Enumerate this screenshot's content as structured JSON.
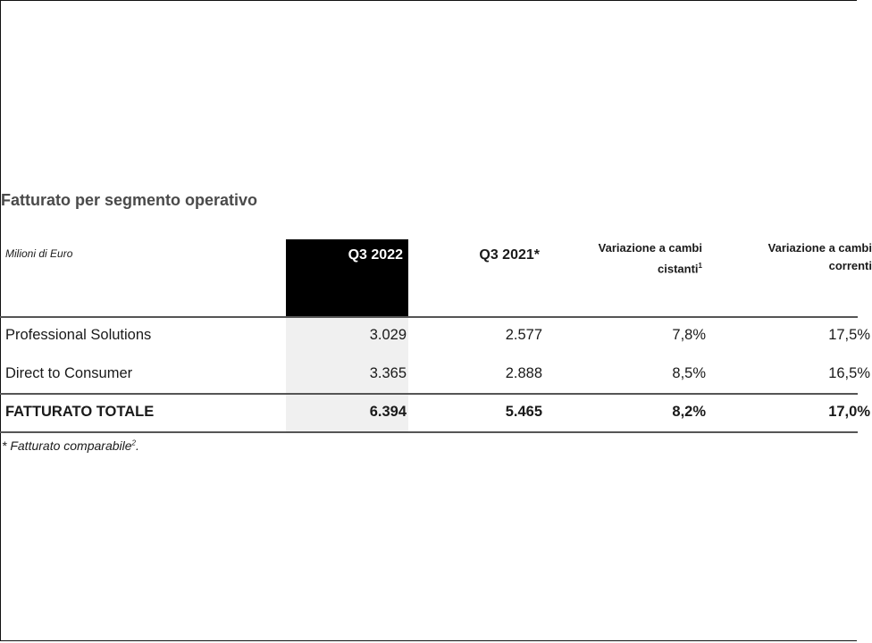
{
  "title": "Fatturato per segmento operativo",
  "units": "Milioni di Euro",
  "columns": [
    {
      "label": "Q3 2022"
    },
    {
      "label": "Q3 2021*"
    },
    {
      "label_line1": "Variazione a cambi",
      "label_line2": "cistanti",
      "sup": "1"
    },
    {
      "label_line1": "Variazione a cambi",
      "label_line2": "correnti"
    }
  ],
  "rows": [
    {
      "label": "Professional Solutions",
      "values": [
        "3.029",
        "2.577",
        "7,8%",
        "17,5%"
      ]
    },
    {
      "label": "Direct to Consumer",
      "values": [
        "3.365",
        "2.888",
        "8,5%",
        "16,5%"
      ]
    }
  ],
  "total": {
    "label": "FATTURATO TOTALE",
    "values": [
      "6.394",
      "5.465",
      "8,2%",
      "17,0%"
    ]
  },
  "footnote": {
    "text": "* Fatturato comparabile",
    "sup": "2",
    "end": "."
  }
}
